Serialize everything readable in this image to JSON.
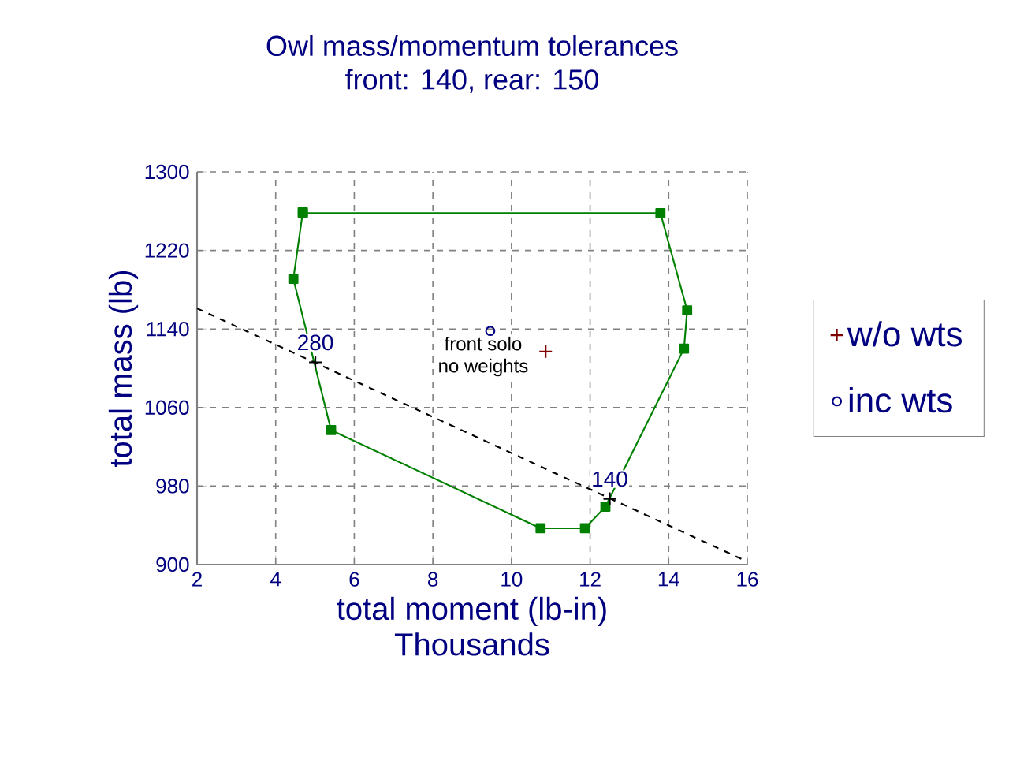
{
  "chart_data": {
    "type": "line",
    "title": "Owl mass/momentum tolerances",
    "subtitle": "front: 140, rear: 150",
    "xlabel": "total moment (lb-in)",
    "ylabel": "total mass (lb)",
    "xlim": [
      2,
      16
    ],
    "xticks": [
      2,
      4,
      6,
      8,
      10,
      12,
      14,
      16
    ],
    "ylim": [
      900,
      1300
    ],
    "yticks": [
      900,
      980,
      1060,
      1140,
      1220,
      1300
    ],
    "grid": true,
    "legend": "right",
    "series": [
      {
        "color": "#008000",
        "marker": "square",
        "line_style": "solid",
        "x": [
          4.69,
          13.79,
          14.47,
          14.39,
          12.39,
          11.87,
          10.74,
          5.41,
          4.45,
          4.69
        ],
        "values": [
          1258,
          1258,
          1159,
          1120,
          959,
          937,
          937,
          1037,
          1191,
          1259
        ]
      },
      {
        "color": "#000000",
        "marker": "none",
        "line_style": "dashed",
        "x": [
          2,
          16
        ],
        "values": [
          1161,
          903
        ]
      },
      {
        "type": "scatter",
        "color": "#000000",
        "marker": "cross",
        "x": [
          5.01,
          12.5
        ],
        "values": [
          1106,
          967
        ]
      },
      {
        "type": "scatter",
        "name": "w/o wts",
        "color": "#800000",
        "marker": "cross",
        "x": [
          10.87
        ],
        "values": [
          1117
        ]
      },
      {
        "type": "scatter",
        "name": "inc wts",
        "color": "#000080",
        "marker": "circle",
        "x": [
          9.46
        ],
        "values": [
          1138
        ]
      }
    ],
    "annotations": [
      {
        "text": "280",
        "x": 5.01,
        "y": 1106
      },
      {
        "text": "140",
        "x": 12.5,
        "y": 967
      },
      "front solo",
      "no weights",
      "Thousands"
    ]
  }
}
